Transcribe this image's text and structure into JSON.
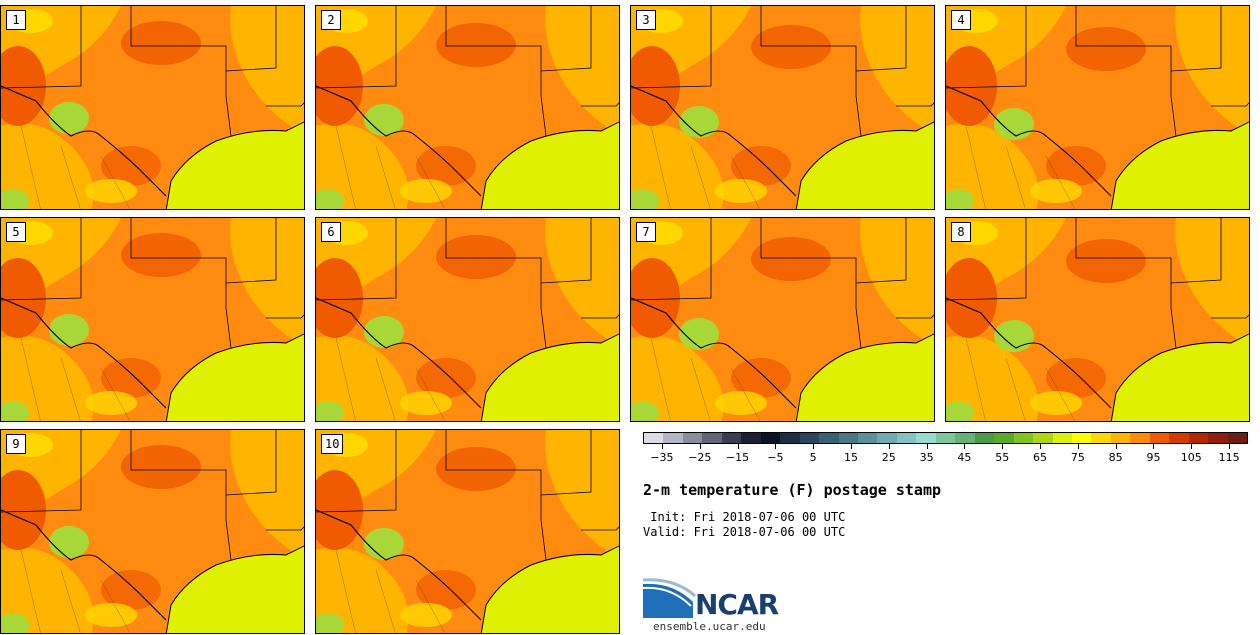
{
  "title": "2-m temperature (F) postage stamp",
  "init_line": " Init: Fri 2018-07-06 00 UTC",
  "valid_line": "Valid: Fri 2018-07-06 00 UTC",
  "url": "ensemble.ucar.edu",
  "logo_text": "NCAR",
  "panels": [
    {
      "label": "1"
    },
    {
      "label": "2"
    },
    {
      "label": "3"
    },
    {
      "label": "4"
    },
    {
      "label": "5"
    },
    {
      "label": "6"
    },
    {
      "label": "7"
    },
    {
      "label": "8"
    },
    {
      "label": "9"
    },
    {
      "label": "10"
    }
  ],
  "colorbar": {
    "colors": [
      "#dcdce6",
      "#b4b4c8",
      "#8c8ca0",
      "#646478",
      "#3c3c55",
      "#1e1e37",
      "#0a1428",
      "#1e2d46",
      "#2d4660",
      "#3c5f78",
      "#4b7887",
      "#5a919b",
      "#6eaaaf",
      "#82c3c3",
      "#96dcd2",
      "#7dc89b",
      "#64b478",
      "#4b9b46",
      "#5aaa28",
      "#82c31e",
      "#afd714",
      "#dcf00a",
      "#ffff00",
      "#ffd700",
      "#ffb400",
      "#ff8c00",
      "#f05a00",
      "#d23c00",
      "#b42800",
      "#911e0a",
      "#6e1e14"
    ],
    "tick_labels": [
      "−35",
      "−25",
      "−15",
      "−5",
      "5",
      "15",
      "25",
      "35",
      "45",
      "55",
      "65",
      "75",
      "85",
      "95",
      "105",
      "115"
    ],
    "min": -40,
    "max": 120,
    "tick_values": [
      -35,
      -25,
      -15,
      -5,
      5,
      15,
      25,
      35,
      45,
      55,
      65,
      75,
      85,
      95,
      105,
      115
    ]
  },
  "colors": {
    "gulf": "#dff000",
    "warm": "#ff8c10",
    "hot": "#f05a00",
    "mild": "#ffb400",
    "cool": "#ffd700",
    "green": "#a8d838",
    "border": "#000000"
  }
}
